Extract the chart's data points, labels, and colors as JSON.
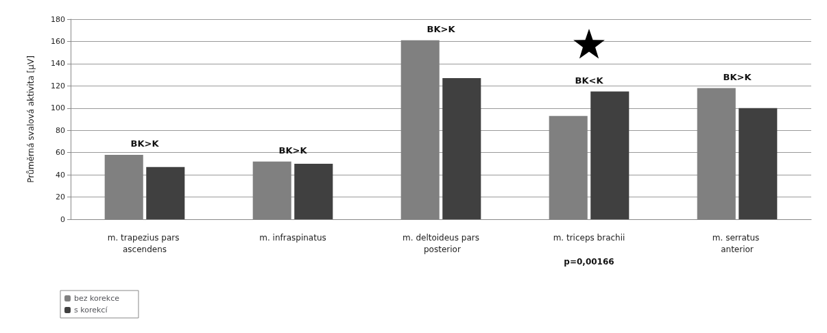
{
  "chart_data": {
    "type": "bar",
    "ylabel": "Průměrná svalová aktivita [µV]",
    "categories": [
      "m. trapezius pars ascendens",
      "m. infraspinatus",
      "m. deltoideus pars posterior",
      "m. triceps brachii",
      "m. serratus anterior"
    ],
    "series": [
      {
        "name": "bez korekce",
        "color": "#808080",
        "values": [
          58,
          52,
          161,
          93,
          118
        ]
      },
      {
        "name": "s korekcí",
        "color": "#404040",
        "values": [
          47,
          50,
          127,
          115,
          100
        ]
      }
    ],
    "ylim": [
      0,
      180
    ],
    "yticks": [
      0,
      20,
      40,
      60,
      80,
      100,
      120,
      140,
      160,
      180
    ],
    "grid": "y",
    "legend": "bottom left",
    "annotations": [
      {
        "text": "BK>K",
        "x": "m. trapezius pars ascendens",
        "y": 58
      },
      {
        "text": "BK>K",
        "x": "m. infraspinatus",
        "y": 52
      },
      {
        "text": "BK>K",
        "x": "m. deltoideus pars posterior",
        "y": 161
      },
      {
        "text": "BK<K",
        "x": "m. triceps brachii",
        "y": 115
      },
      "p=0,00166",
      {
        "text": "BK>K",
        "x": "m. serratus anterior",
        "y": 118
      }
    ]
  }
}
